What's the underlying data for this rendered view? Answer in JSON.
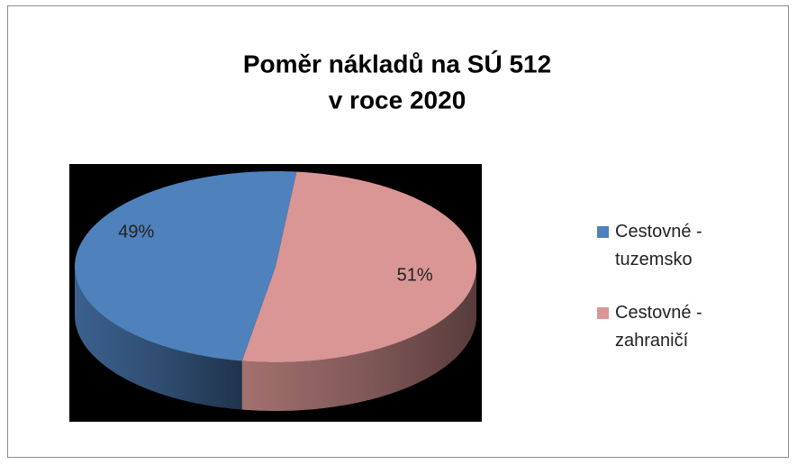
{
  "chart_data": {
    "type": "pie3d",
    "title": [
      "Poměr nákladů na SÚ 512",
      "v roce 2020"
    ],
    "series": [
      {
        "name": "Cestovné - tuzemsko",
        "color": "#4f81bd"
      },
      {
        "name": "Cestovné - zahraničí",
        "color": "#d99694"
      }
    ],
    "values": [
      49,
      51
    ],
    "value_labels": [
      "49%",
      "51%"
    ],
    "legend": "right"
  }
}
